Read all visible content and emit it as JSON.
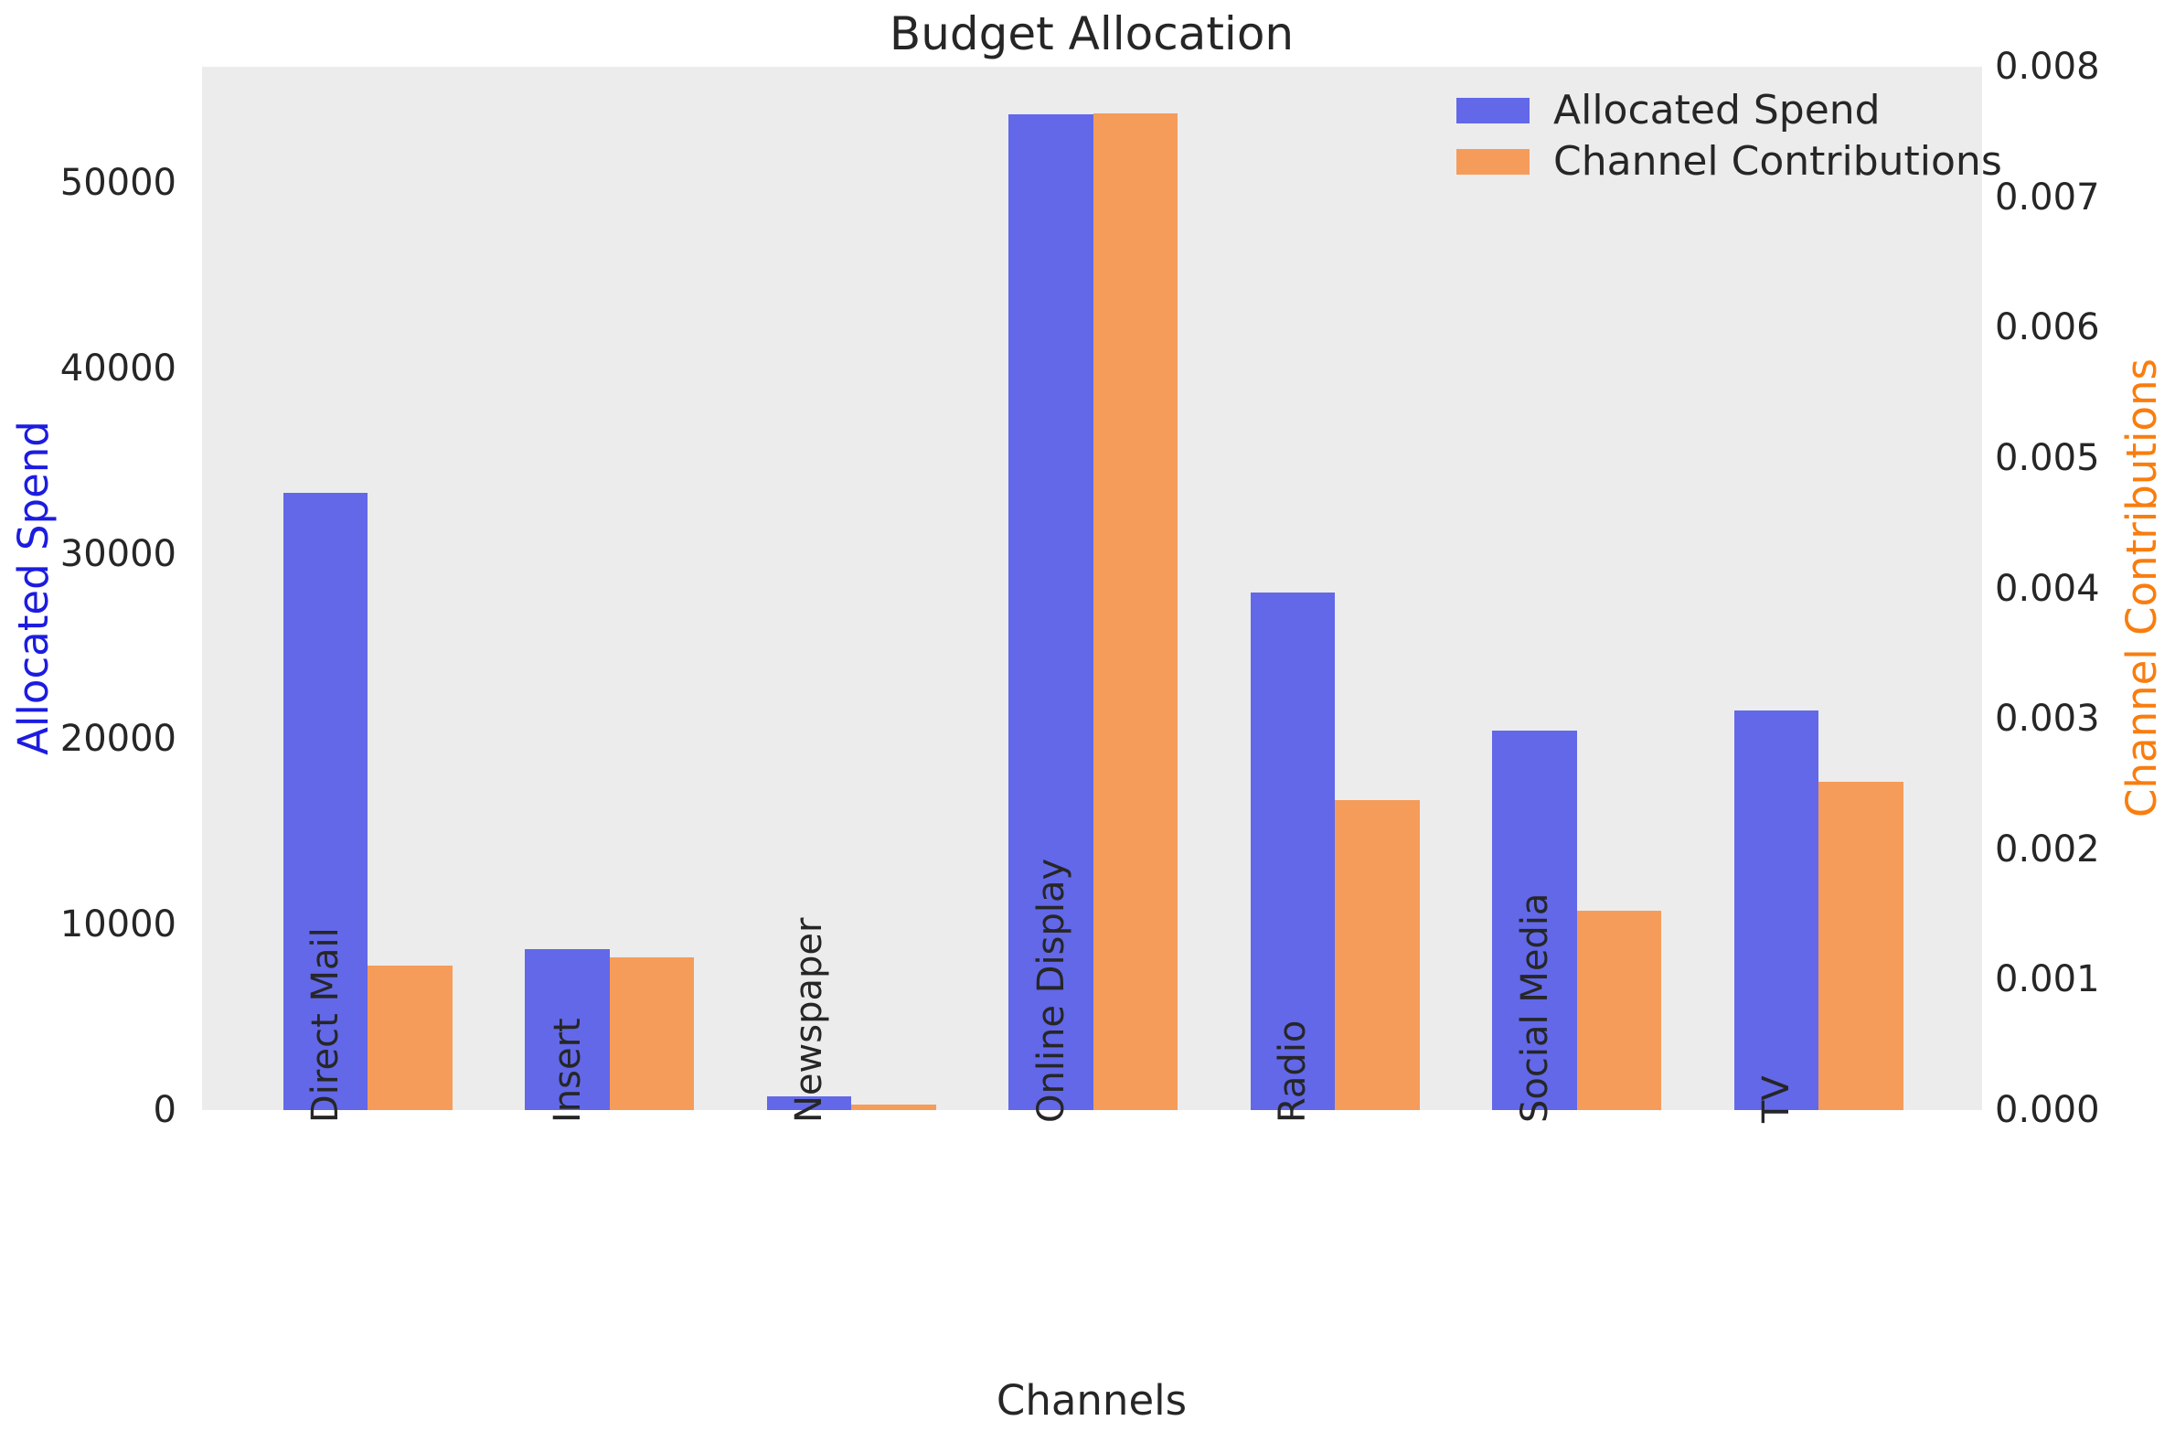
{
  "title": "Budget Allocation",
  "chart_data": {
    "type": "bar",
    "title": "Budget Allocation",
    "xlabel": "Channels",
    "ylabel_left": "Allocated Spend",
    "ylabel_right": "Channel Contributions",
    "categories": [
      "Direct Mail",
      "Insert",
      "Newspaper",
      "Online Display",
      "Radio",
      "Social Media",
      "TV"
    ],
    "series": [
      {
        "name": "Allocated Spend",
        "axis": "left",
        "color": "#6268e8",
        "values": [
          33300,
          8700,
          750,
          53700,
          27900,
          20450,
          21550
        ]
      },
      {
        "name": "Channel Contributions",
        "axis": "right",
        "color": "#f59c5b",
        "values": [
          0.00111,
          0.00117,
          4e-05,
          0.00764,
          0.00238,
          0.00153,
          0.00252
        ]
      }
    ],
    "ylim_left": [
      0,
      56260
    ],
    "ylim_right": [
      0,
      0.008
    ],
    "yticks_left": [
      0,
      10000,
      20000,
      30000,
      40000,
      50000
    ],
    "yticks_right": [
      "0.000",
      "0.001",
      "0.002",
      "0.003",
      "0.004",
      "0.005",
      "0.006",
      "0.007",
      "0.008"
    ],
    "legend_position": "upper right",
    "grid": false,
    "plot_background": "#ececec",
    "axis_label_colors": {
      "left": "#1c1ce0",
      "right": "#f97d0e"
    },
    "tick_label_color": "#262626"
  }
}
